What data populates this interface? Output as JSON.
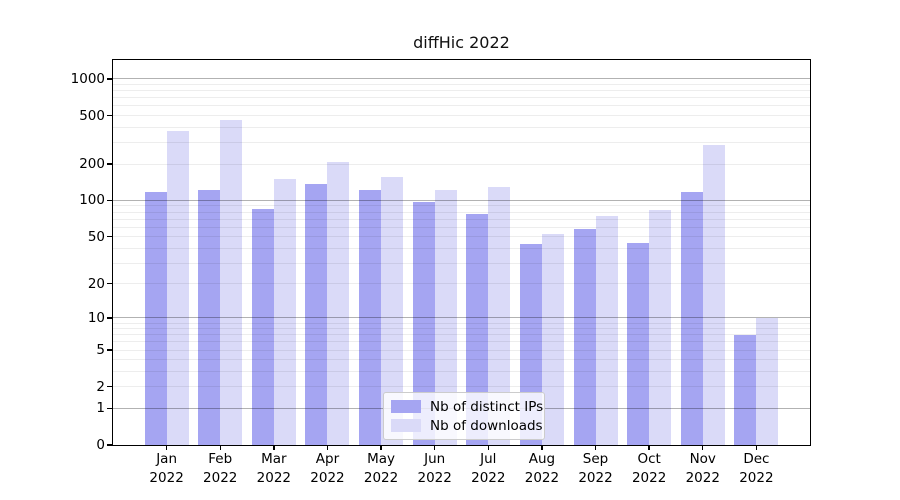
{
  "chart_data": {
    "type": "bar",
    "title": "diffHic 2022",
    "categories": [
      {
        "month": "Jan",
        "year": "2022"
      },
      {
        "month": "Feb",
        "year": "2022"
      },
      {
        "month": "Mar",
        "year": "2022"
      },
      {
        "month": "Apr",
        "year": "2022"
      },
      {
        "month": "May",
        "year": "2022"
      },
      {
        "month": "Jun",
        "year": "2022"
      },
      {
        "month": "Jul",
        "year": "2022"
      },
      {
        "month": "Aug",
        "year": "2022"
      },
      {
        "month": "Sep",
        "year": "2022"
      },
      {
        "month": "Oct",
        "year": "2022"
      },
      {
        "month": "Nov",
        "year": "2022"
      },
      {
        "month": "Dec",
        "year": "2022"
      }
    ],
    "series": [
      {
        "name": "Nb of distinct IPs",
        "color": "#a5a5f2",
        "values": [
          118,
          122,
          85,
          137,
          121,
          98,
          77,
          43,
          58,
          44,
          118,
          7
        ]
      },
      {
        "name": "Nb of downloads",
        "color": "#dadaf8",
        "values": [
          372,
          463,
          150,
          207,
          156,
          122,
          129,
          53,
          74,
          84,
          288,
          10
        ]
      }
    ],
    "y_axis": {
      "scale": "log1p",
      "ticks": [
        0,
        1,
        2,
        5,
        10,
        20,
        50,
        100,
        200,
        500,
        1000
      ],
      "major_gridlines": [
        1,
        10,
        100,
        1000
      ],
      "minor_gridlines": [
        2,
        3,
        4,
        5,
        6,
        7,
        8,
        9,
        20,
        30,
        40,
        50,
        60,
        70,
        80,
        90,
        200,
        300,
        400,
        500,
        600,
        700,
        800,
        900
      ]
    },
    "legend_position": "bottom-center",
    "grid": true
  }
}
